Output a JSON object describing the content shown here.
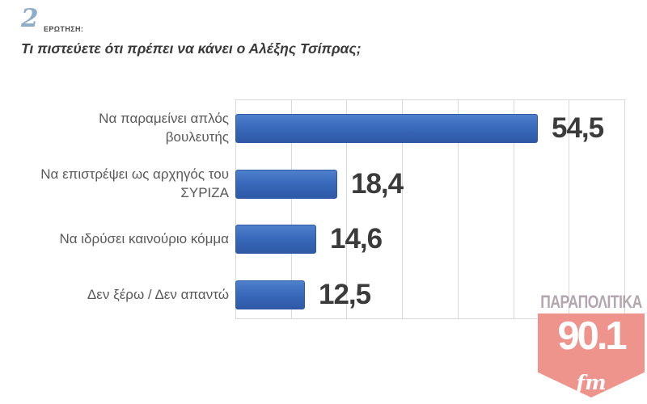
{
  "header": {
    "question_number": "2",
    "question_label": "ΕΡΩΤΗΣΗ:",
    "title": "Τι πιστεύετε ότι πρέπει να κάνει ο Αλέξης Τσίπρας;"
  },
  "chart_data": {
    "type": "bar",
    "orientation": "horizontal",
    "categories": [
      "Να παραμείνει απλός βουλευτής",
      "Να επιστρέψει ως αρχηγός του ΣΥΡΙΖΑ",
      "Να ιδρύσει καινούριο κόμμα",
      "Δεν ξέρω / Δεν απαντώ"
    ],
    "values": [
      54.5,
      18.4,
      14.6,
      12.5
    ],
    "value_labels": [
      "54,5",
      "18,4",
      "14,6",
      "12,5"
    ],
    "xlim": [
      0,
      70
    ],
    "gridline_interval": 10,
    "grid": true,
    "legend": false,
    "bar_color": "#3A6ABB",
    "gridline_color": "#d9d9d9"
  },
  "watermark": {
    "station_name": "ΠΑΡΑΠΟΛΙΤΙΚΑ",
    "frequency": "90.1",
    "band": "fm",
    "badge_color": "#EF948D"
  }
}
